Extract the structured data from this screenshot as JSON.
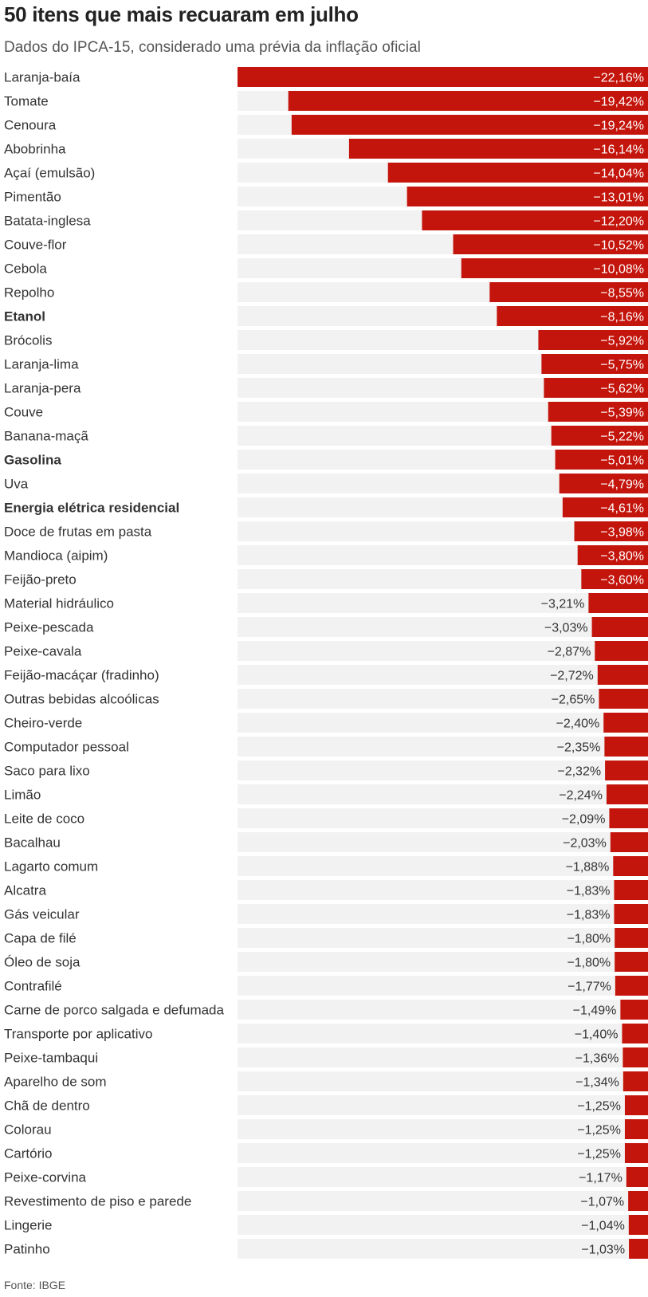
{
  "title": "50 itens que mais recuaram em julho",
  "subtitle": "Dados do IPCA-15, considerado uma prévia da inflação oficial",
  "source": "Fonte: IBGE",
  "colors": {
    "bar": "#c4150c",
    "track": "#f2f2f2",
    "label": "#333333",
    "value_inside": "#ffffff",
    "value_outside": "#333333"
  },
  "chart_data": {
    "type": "bar",
    "orientation": "horizontal",
    "xlim": [
      -22.16,
      0
    ],
    "bold_categories": [
      "Etanol",
      "Gasolina",
      "Energia elétrica residencial"
    ],
    "categories": [
      "Laranja-baía",
      "Tomate",
      "Cenoura",
      "Abobrinha",
      "Açaí (emulsão)",
      "Pimentão",
      "Batata-inglesa",
      "Couve-flor",
      "Cebola",
      "Repolho",
      "Etanol",
      "Brócolis",
      "Laranja-lima",
      "Laranja-pera",
      "Couve",
      "Banana-maçã",
      "Gasolina",
      "Uva",
      "Energia elétrica residencial",
      "Doce de frutas em pasta",
      "Mandioca (aipim)",
      "Feijão-preto",
      "Material hidráulico",
      "Peixe-pescada",
      "Peixe-cavala",
      "Feijão-macáçar (fradinho)",
      "Outras bebidas alcoólicas",
      "Cheiro-verde",
      "Computador pessoal",
      "Saco para lixo",
      "Limão",
      "Leite de coco",
      "Bacalhau",
      "Lagarto comum",
      "Alcatra",
      "Gás veicular",
      "Capa de filé",
      "Óleo de soja",
      "Contrafilé",
      "Carne de porco salgada e defumada",
      "Transporte por aplicativo",
      "Peixe-tambaqui",
      "Aparelho de som",
      "Chã de dentro",
      "Colorau",
      "Cartório",
      "Peixe-corvina",
      "Revestimento de piso e parede",
      "Lingerie",
      "Patinho"
    ],
    "values": [
      -22.16,
      -19.42,
      -19.24,
      -16.14,
      -14.04,
      -13.01,
      -12.2,
      -10.52,
      -10.08,
      -8.55,
      -8.16,
      -5.92,
      -5.75,
      -5.62,
      -5.39,
      -5.22,
      -5.01,
      -4.79,
      -4.61,
      -3.98,
      -3.8,
      -3.6,
      -3.21,
      -3.03,
      -2.87,
      -2.72,
      -2.65,
      -2.4,
      -2.35,
      -2.32,
      -2.24,
      -2.09,
      -2.03,
      -1.88,
      -1.83,
      -1.83,
      -1.8,
      -1.8,
      -1.77,
      -1.49,
      -1.4,
      -1.36,
      -1.34,
      -1.25,
      -1.25,
      -1.25,
      -1.17,
      -1.07,
      -1.04,
      -1.03
    ],
    "value_labels": [
      "−22,16%",
      "−19,42%",
      "−19,24%",
      "−16,14%",
      "−14,04%",
      "−13,01%",
      "−12,20%",
      "−10,52%",
      "−10,08%",
      "−8,55%",
      "−8,16%",
      "−5,92%",
      "−5,75%",
      "−5,62%",
      "−5,39%",
      "−5,22%",
      "−5,01%",
      "−4,79%",
      "−4,61%",
      "−3,98%",
      "−3,80%",
      "−3,60%",
      "−3,21%",
      "−3,03%",
      "−2,87%",
      "−2,72%",
      "−2,65%",
      "−2,40%",
      "−2,35%",
      "−2,32%",
      "−2,24%",
      "−2,09%",
      "−2,03%",
      "−1,88%",
      "−1,83%",
      "−1,83%",
      "−1,80%",
      "−1,80%",
      "−1,77%",
      "−1,49%",
      "−1,40%",
      "−1,36%",
      "−1,34%",
      "−1,25%",
      "−1,25%",
      "−1,25%",
      "−1,17%",
      "−1,07%",
      "−1,04%",
      "−1,03%"
    ]
  }
}
